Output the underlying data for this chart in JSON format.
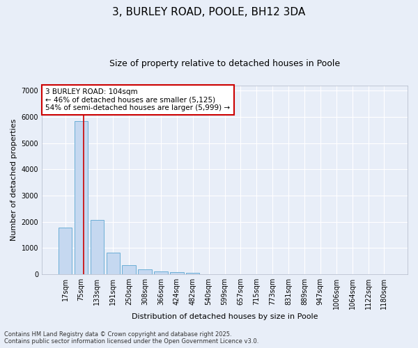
{
  "title_line1": "3, BURLEY ROAD, POOLE, BH12 3DA",
  "title_line2": "Size of property relative to detached houses in Poole",
  "xlabel": "Distribution of detached houses by size in Poole",
  "ylabel": "Number of detached properties",
  "categories": [
    "17sqm",
    "75sqm",
    "133sqm",
    "191sqm",
    "250sqm",
    "308sqm",
    "366sqm",
    "424sqm",
    "482sqm",
    "540sqm",
    "599sqm",
    "657sqm",
    "715sqm",
    "773sqm",
    "831sqm",
    "889sqm",
    "947sqm",
    "1006sqm",
    "1064sqm",
    "1122sqm",
    "1180sqm"
  ],
  "values": [
    1780,
    5850,
    2080,
    820,
    340,
    190,
    110,
    90,
    60,
    0,
    0,
    0,
    0,
    0,
    0,
    0,
    0,
    0,
    0,
    0,
    0
  ],
  "bar_color": "#c5d8f0",
  "bar_edge_color": "#6baed6",
  "vline_color": "#cc0000",
  "vline_x": 1.15,
  "annotation_text": "3 BURLEY ROAD: 104sqm\n← 46% of detached houses are smaller (5,125)\n54% of semi-detached houses are larger (5,999) →",
  "annotation_box_color": "#ffffff",
  "annotation_box_edge": "#cc0000",
  "ylim": [
    0,
    7200
  ],
  "yticks": [
    0,
    1000,
    2000,
    3000,
    4000,
    5000,
    6000,
    7000
  ],
  "background_color": "#e8eef8",
  "grid_color": "#ffffff",
  "footer_text": "Contains HM Land Registry data © Crown copyright and database right 2025.\nContains public sector information licensed under the Open Government Licence v3.0.",
  "title_fontsize": 11,
  "subtitle_fontsize": 9,
  "tick_fontsize": 7,
  "label_fontsize": 8,
  "annotation_fontsize": 7.5
}
